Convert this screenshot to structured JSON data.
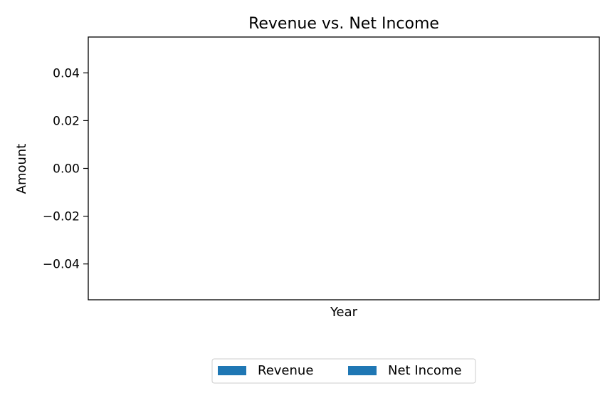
{
  "chart_data": {
    "type": "bar",
    "title": "Revenue vs. Net Income",
    "xlabel": "Year",
    "ylabel": "Amount",
    "categories": [],
    "series": [
      {
        "name": "Revenue",
        "values": [],
        "color": "#1f77b4"
      },
      {
        "name": "Net Income",
        "values": [],
        "color": "#1f77b4"
      }
    ],
    "ylim": [
      -0.055,
      0.055
    ],
    "yticks": [
      0.04,
      0.02,
      0.0,
      -0.02,
      -0.04
    ],
    "ytick_labels": [
      "0.04",
      "0.02",
      "0.00",
      "−0.02",
      "−0.04"
    ],
    "grid": false,
    "legend": {
      "placement": "bottom-center",
      "columns": 2
    }
  }
}
